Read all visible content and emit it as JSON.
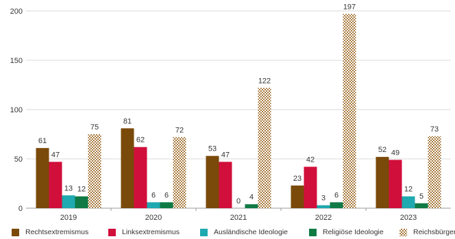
{
  "chart_data": {
    "type": "bar",
    "categories": [
      "2019",
      "2020",
      "2021",
      "2022",
      "2023"
    ],
    "series": [
      {
        "name": "Rechtsextremismus",
        "values": [
          61,
          81,
          53,
          23,
          52
        ],
        "color": "#7a4a0a",
        "pattern": false
      },
      {
        "name": "Linksextremismus",
        "values": [
          47,
          62,
          47,
          42,
          49
        ],
        "color": "#d10f3b",
        "pattern": false
      },
      {
        "name": "Ausländische Ideologie",
        "values": [
          13,
          6,
          0,
          3,
          12
        ],
        "color": "#1fa9b0",
        "pattern": false
      },
      {
        "name": "Religiöse Ideologie",
        "values": [
          12,
          6,
          4,
          6,
          5
        ],
        "color": "#0f7a45",
        "pattern": false
      },
      {
        "name": "Reichsbürger",
        "values": [
          75,
          72,
          122,
          197,
          73
        ],
        "color": "#a87a3e",
        "pattern": true
      }
    ],
    "yticks": [
      0,
      50,
      100,
      150,
      200
    ],
    "ylim": [
      0,
      200
    ],
    "grid": true,
    "data_labels": true,
    "legend": "bottom",
    "title": "",
    "xlabel": "",
    "ylabel": ""
  }
}
